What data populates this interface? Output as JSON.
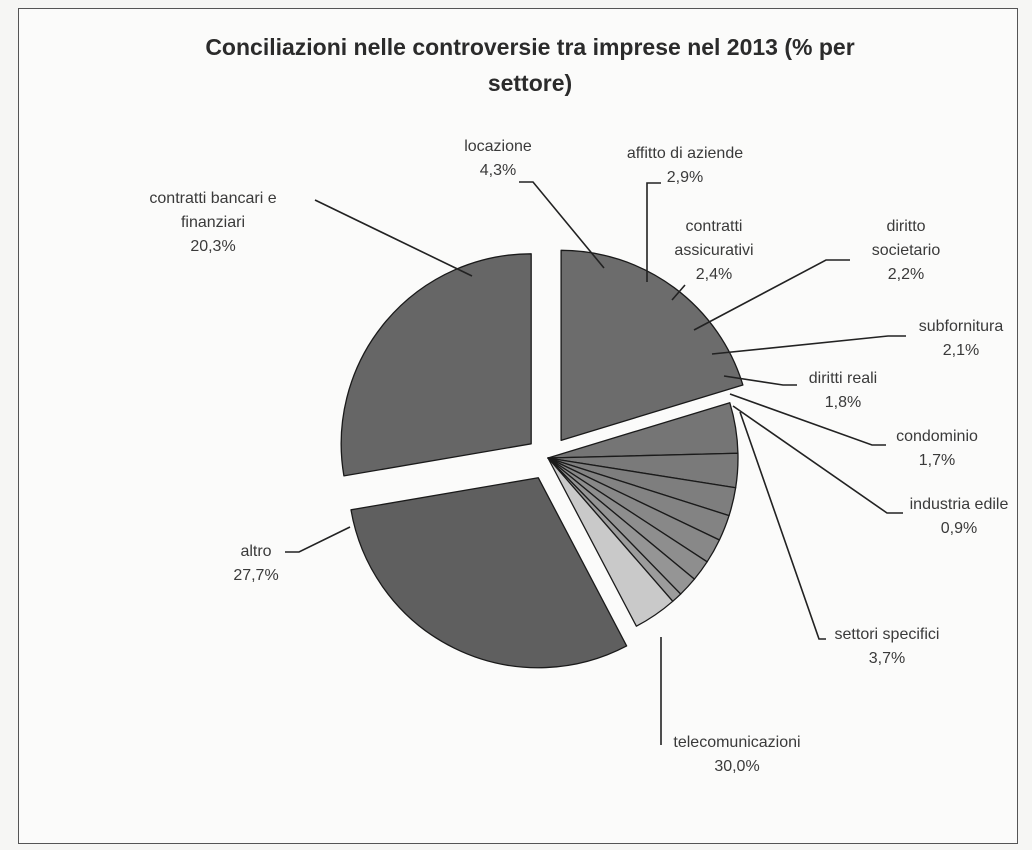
{
  "chart_data": {
    "type": "pie",
    "title": "Conciliazioni nelle controversie tra imprese nel 2013 (% per settore)",
    "title_lines": [
      "Conciliazioni nelle controversie tra imprese nel 2013 (% per",
      "settore)"
    ],
    "unit": "%",
    "slices": [
      {
        "name": "contratti bancari e finanziari",
        "label_lines": [
          "contratti bancari e",
          "finanziari"
        ],
        "value": 20.3,
        "value_label": "20,3%",
        "exploded": true,
        "color": "#6c6c6c"
      },
      {
        "name": "locazione",
        "label_lines": [
          "locazione"
        ],
        "value": 4.3,
        "value_label": "4,3%",
        "exploded": false,
        "color": "#757575"
      },
      {
        "name": "affitto di aziende",
        "label_lines": [
          "affitto di aziende"
        ],
        "value": 2.9,
        "value_label": "2,9%",
        "exploded": false,
        "color": "#7a7a7a"
      },
      {
        "name": "contratti assicurativi",
        "label_lines": [
          "contratti",
          "assicurativi"
        ],
        "value": 2.4,
        "value_label": "2,4%",
        "exploded": false,
        "color": "#7e7e7e"
      },
      {
        "name": "diritto societario",
        "label_lines": [
          "diritto",
          "societario"
        ],
        "value": 2.2,
        "value_label": "2,2%",
        "exploded": false,
        "color": "#838383"
      },
      {
        "name": "subfornitura",
        "label_lines": [
          "subfornitura"
        ],
        "value": 2.1,
        "value_label": "2,1%",
        "exploded": false,
        "color": "#888888"
      },
      {
        "name": "diritti reali",
        "label_lines": [
          "diritti reali"
        ],
        "value": 1.8,
        "value_label": "1,8%",
        "exploded": false,
        "color": "#8e8e8e"
      },
      {
        "name": "condominio",
        "label_lines": [
          "condominio"
        ],
        "value": 1.7,
        "value_label": "1,7%",
        "exploded": false,
        "color": "#959595"
      },
      {
        "name": "industria edile",
        "label_lines": [
          "industria edile"
        ],
        "value": 0.9,
        "value_label": "0,9%",
        "exploded": false,
        "color": "#9c9c9c"
      },
      {
        "name": "settori specifici",
        "label_lines": [
          "settori specifici"
        ],
        "value": 3.7,
        "value_label": "3,7%",
        "exploded": false,
        "color": "#c9c9c9"
      },
      {
        "name": "telecomunicazioni",
        "label_lines": [
          "telecomunicazioni"
        ],
        "value": 30.0,
        "value_label": "30,0%",
        "exploded": true,
        "color": "#5f5f5f"
      },
      {
        "name": "altro",
        "label_lines": [
          "altro"
        ],
        "value": 27.7,
        "value_label": "27,7%",
        "exploded": true,
        "color": "#666666"
      }
    ]
  }
}
